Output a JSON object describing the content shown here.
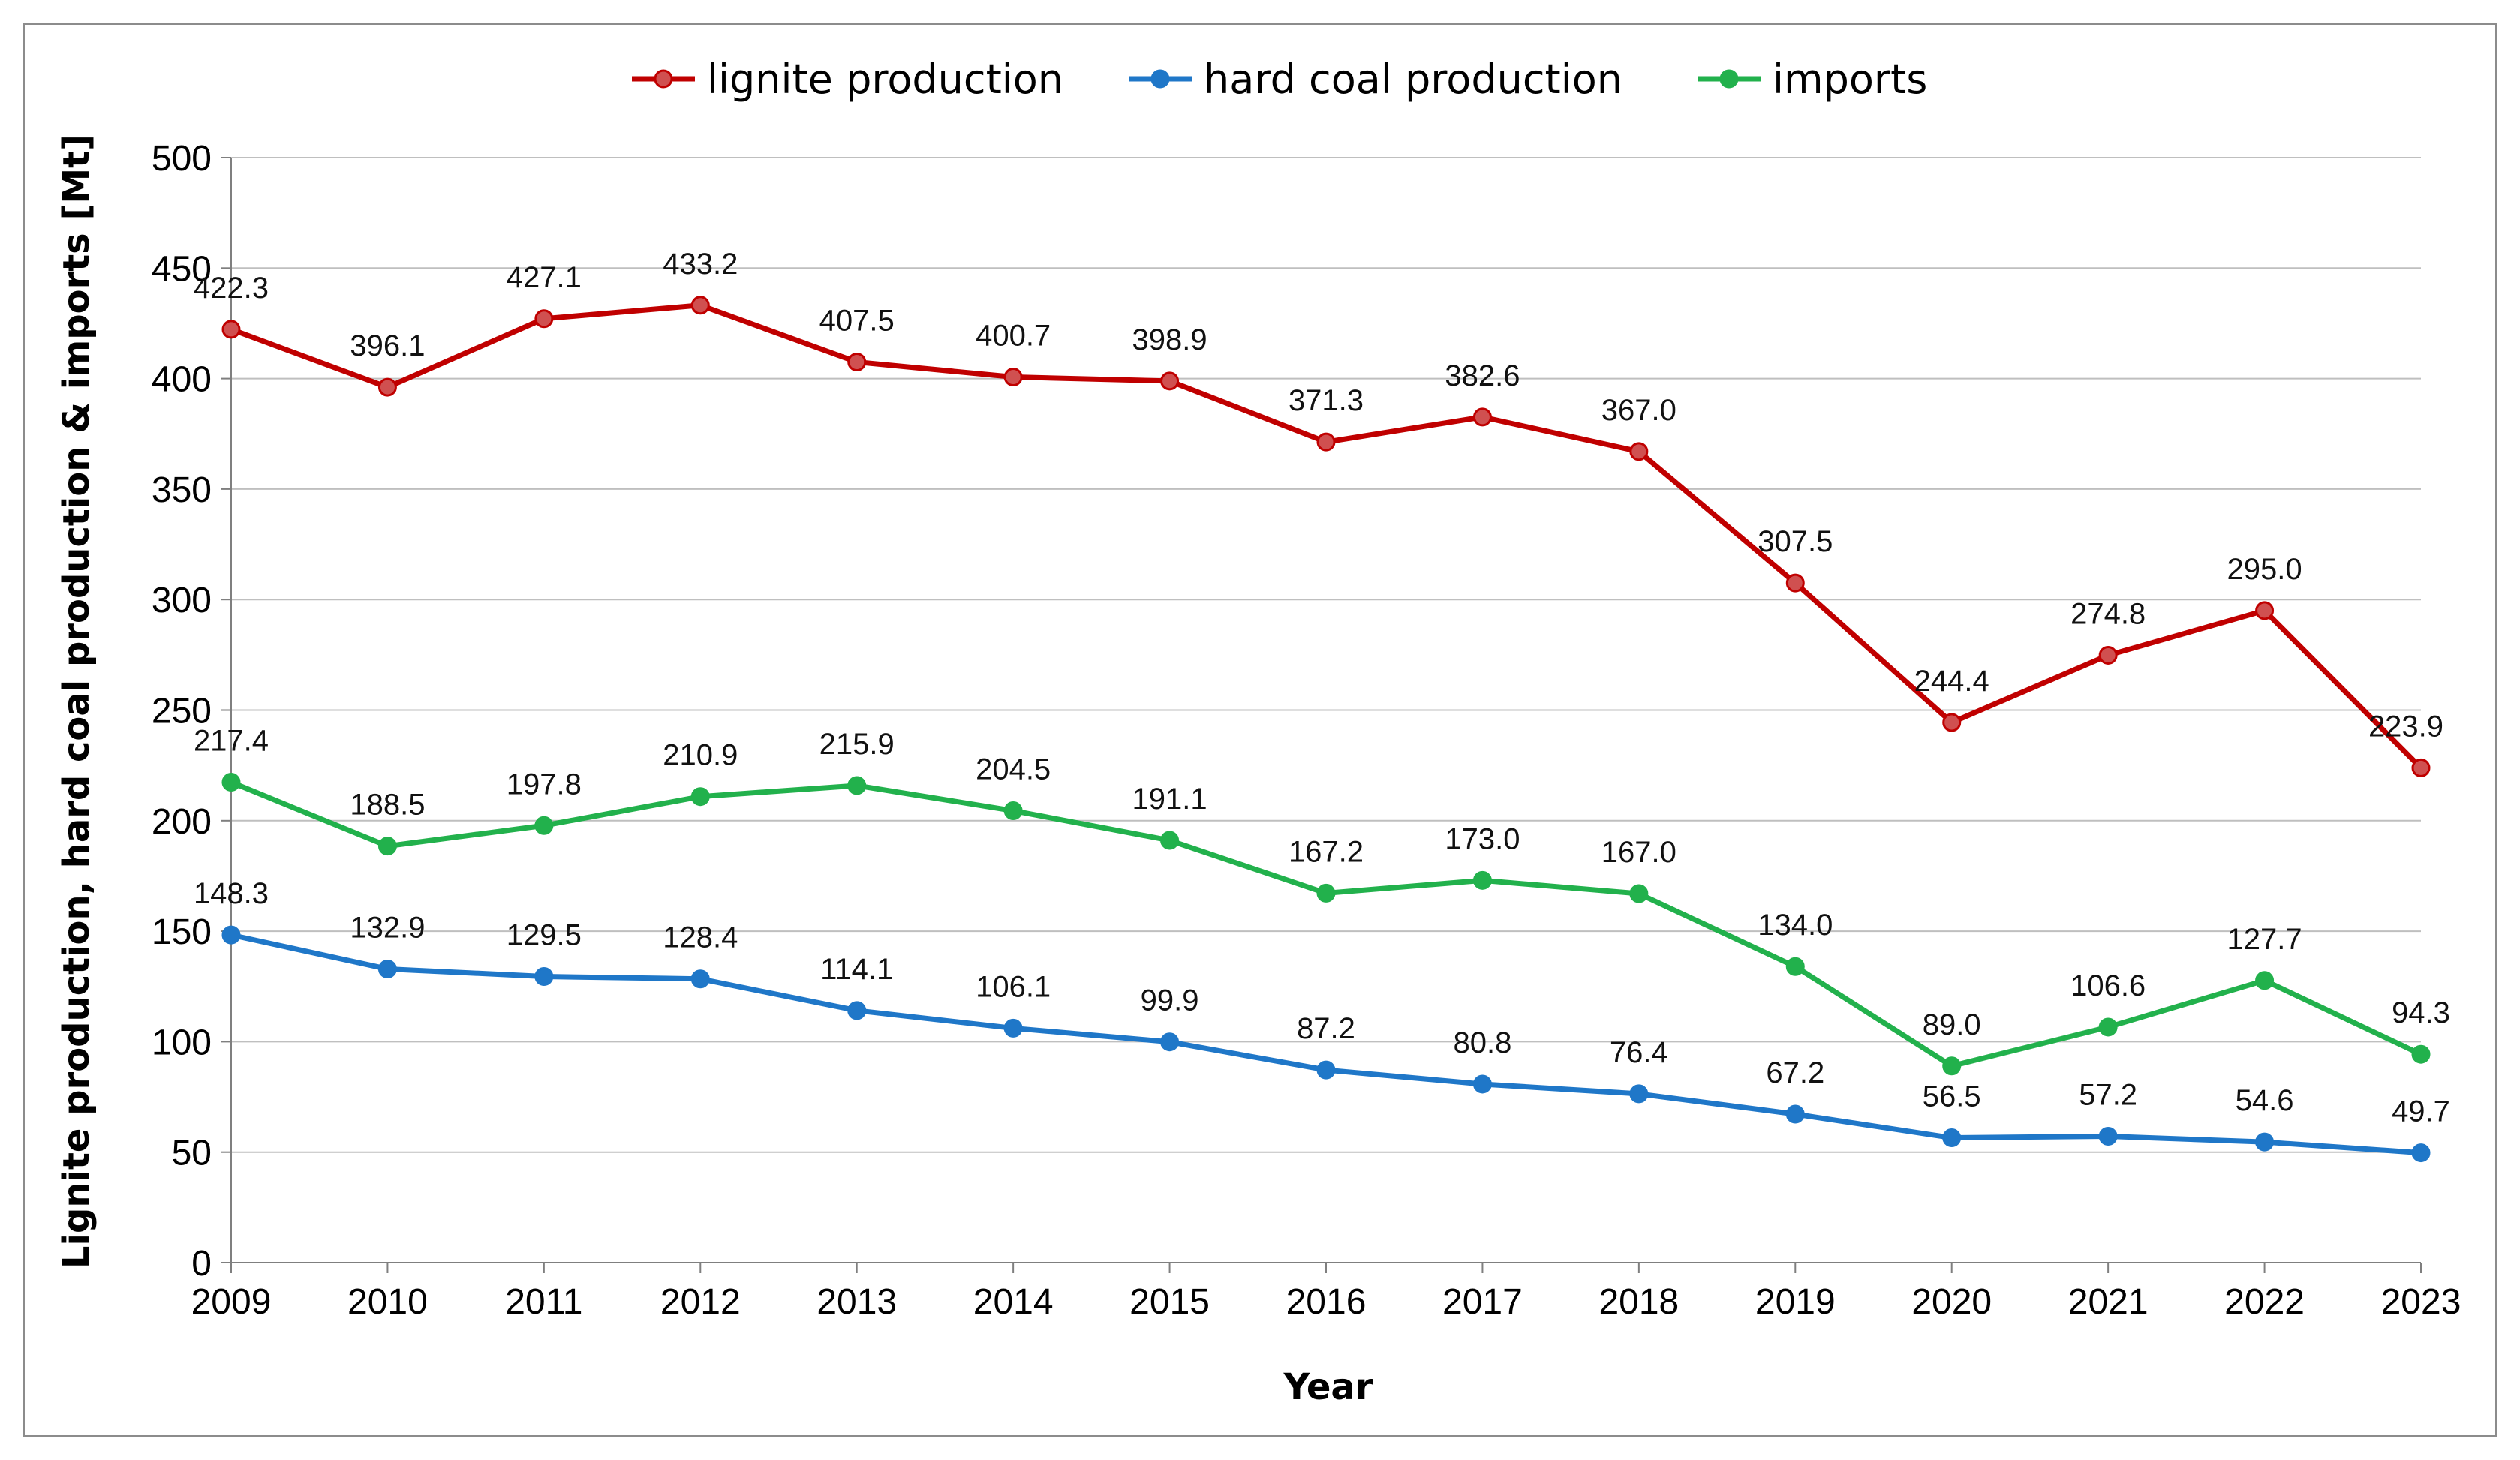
{
  "chart_data": {
    "type": "line",
    "title": "",
    "xlabel": "Year",
    "ylabel": "Lignite production, hard coal production & imports [Mt]",
    "x": [
      "2009",
      "2010",
      "2011",
      "2012",
      "2013",
      "2014",
      "2015",
      "2016",
      "2017",
      "2018",
      "2019",
      "2020",
      "2021",
      "2022",
      "2023"
    ],
    "ylim": [
      0,
      500
    ],
    "yticks": [
      0,
      50,
      100,
      150,
      200,
      250,
      300,
      350,
      400,
      450,
      500
    ],
    "grid": true,
    "legend_position": "top-center",
    "series": [
      {
        "name": "lignite production",
        "color": "#c00000",
        "marker_color": "#d05050",
        "values": [
          422.3,
          396.1,
          427.1,
          433.2,
          407.5,
          400.7,
          398.9,
          371.3,
          382.6,
          367.0,
          307.5,
          244.4,
          274.8,
          295.0,
          223.9
        ],
        "labels": [
          "422.3",
          "396.1",
          "427.1",
          "433.2",
          "407.5",
          "400.7",
          "398.9",
          "371.3",
          "382.6",
          "367.0",
          "307.5",
          "244.4",
          "274.8",
          "295.0",
          "223.9"
        ]
      },
      {
        "name": "hard coal production",
        "color": "#1f77c8",
        "marker_color": "#1f77c8",
        "values": [
          148.3,
          132.9,
          129.5,
          128.4,
          114.1,
          106.1,
          99.9,
          87.2,
          80.8,
          76.4,
          67.2,
          56.5,
          57.2,
          54.6,
          49.7
        ],
        "labels": [
          "148.3",
          "132.9",
          "129.5",
          "128.4",
          "114.1",
          "106.1",
          "99.9",
          "87.2",
          "80.8",
          "76.4",
          "67.2",
          "56.5",
          "57.2",
          "54.6",
          "49.7"
        ]
      },
      {
        "name": "imports",
        "color": "#22b14c",
        "marker_color": "#22b14c",
        "values": [
          217.4,
          188.5,
          197.8,
          210.9,
          215.9,
          204.5,
          191.1,
          167.2,
          173.0,
          167.0,
          134.0,
          89.0,
          106.6,
          127.7,
          94.3
        ],
        "labels": [
          "217.4",
          "188.5",
          "197.8",
          "210.9",
          "215.9",
          "204.5",
          "191.1",
          "167.2",
          "173.0",
          "167.0",
          "134.0",
          "89.0",
          "106.6",
          "127.7",
          "94.3"
        ]
      }
    ]
  }
}
